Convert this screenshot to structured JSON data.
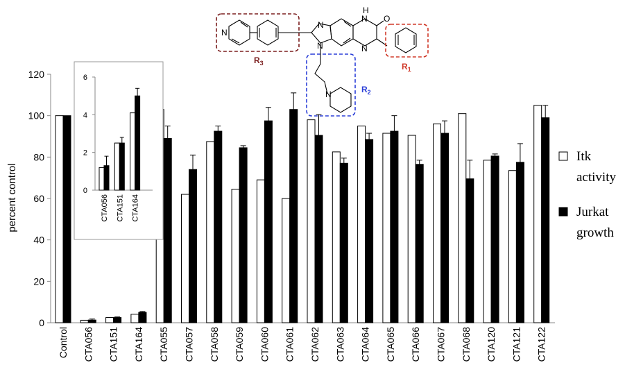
{
  "chart_data": [
    {
      "type": "bar",
      "ylabel": "percent control",
      "ylim": [
        0,
        120
      ],
      "yticks": [
        "0",
        "20",
        "40",
        "60",
        "80",
        "100",
        "120"
      ],
      "categories": [
        "Control",
        "CTA056",
        "CTA151",
        "CTA164",
        "CTA055",
        "CTA057",
        "CTA058",
        "CTA059",
        "CTA060",
        "CTA061",
        "CTA062",
        "CTA063",
        "CTA064",
        "CTA065",
        "CTA066",
        "CTA067",
        "CTA068",
        "CTA120",
        "CTA121",
        "CTA122"
      ],
      "series": [
        {
          "name": "Itk activity",
          "color": "#ffffff",
          "values": [
            100,
            1.2,
            2.5,
            4.1,
            103,
            62,
            87.5,
            64.5,
            69,
            60,
            98,
            82.5,
            95,
            91.5,
            90.5,
            96,
            101,
            78.5,
            73.5,
            105
          ]
        },
        {
          "name": "Jurkat growth",
          "color": "#000000",
          "values": [
            100,
            1.3,
            2.5,
            5.0,
            89,
            74,
            92.5,
            84.5,
            97.5,
            103,
            90.5,
            77,
            88.5,
            92.5,
            76.5,
            91.5,
            69.5,
            80.5,
            77.5,
            99
          ],
          "errors": [
            0,
            0.5,
            0.3,
            0.4,
            6,
            7,
            2.5,
            1,
            6.5,
            8,
            10,
            2.5,
            3,
            7.5,
            2,
            6,
            9,
            1,
            9,
            6
          ]
        }
      ],
      "legend": {
        "position": "right",
        "items": [
          {
            "line1": "Itk",
            "line2": "activity",
            "color": "#ffffff"
          },
          {
            "line1": "Jurkat",
            "line2": "growth",
            "color": "#000000"
          }
        ]
      },
      "grid": false
    },
    {
      "type": "bar",
      "inset": true,
      "ylim": [
        0,
        6
      ],
      "yticks": [
        "0",
        "2",
        "4",
        "6"
      ],
      "categories": [
        "CTA056",
        "CTA151",
        "CTA164"
      ],
      "series": [
        {
          "name": "Itk activity",
          "color": "#ffffff",
          "values": [
            1.2,
            2.5,
            4.1
          ]
        },
        {
          "name": "Jurkat growth",
          "color": "#000000",
          "values": [
            1.3,
            2.5,
            5.0
          ],
          "errors": [
            0.5,
            0.3,
            0.4
          ]
        }
      ]
    }
  ],
  "structure": {
    "atoms": {
      "n_pyridine": "N",
      "n_h": "H",
      "n_top": "N",
      "o": "O",
      "n_imid1": "N",
      "n_imid2": "N",
      "n_ring1": "N",
      "n_ring2": "N",
      "n_pip": "N"
    },
    "labels": {
      "r3": {
        "text": "R",
        "sub": "3",
        "color": "#7b1f1f"
      },
      "r2": {
        "text": "R",
        "sub": "2",
        "color": "#2b3fd8"
      },
      "r1": {
        "text": "R",
        "sub": "1",
        "color": "#d03a2a"
      }
    }
  }
}
